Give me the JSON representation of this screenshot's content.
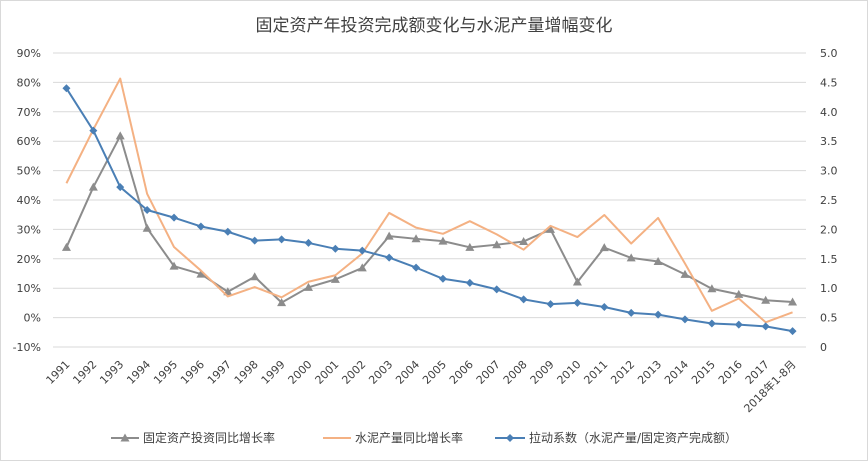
{
  "chart_data": {
    "type": "line",
    "title": "固定资产年投资完成额变化与水泥产量增幅变化",
    "categories": [
      "1991",
      "1992",
      "1993",
      "1994",
      "1995",
      "1996",
      "1997",
      "1998",
      "1999",
      "2000",
      "2001",
      "2002",
      "2003",
      "2004",
      "2005",
      "2006",
      "2007",
      "2008",
      "2009",
      "2010",
      "2011",
      "2012",
      "2013",
      "2014",
      "2015",
      "2016",
      "2017",
      "2018年1-8月"
    ],
    "y_left": {
      "ticks": [
        "-10%",
        "0%",
        "10%",
        "20%",
        "30%",
        "40%",
        "50%",
        "60%",
        "70%",
        "80%",
        "90%"
      ],
      "ylim": [
        -10,
        90
      ]
    },
    "y_right": {
      "ticks": [
        "0",
        "0.5",
        "1.0",
        "1.5",
        "2.0",
        "2.5",
        "3.0",
        "3.5",
        "4.0",
        "4.5",
        "5.0"
      ],
      "ylim": [
        0,
        5
      ]
    },
    "grid": true,
    "legend_position": "bottom",
    "series": [
      {
        "name": "固定资产投资同比增长率",
        "axis": "left",
        "color": "#8c8c8c",
        "marker": "triangle",
        "values": [
          23.9,
          44.4,
          61.8,
          30.4,
          17.5,
          14.8,
          8.8,
          13.9,
          5.1,
          10.3,
          13.0,
          16.9,
          27.7,
          26.8,
          26.0,
          23.9,
          24.8,
          25.9,
          30.0,
          12.1,
          23.8,
          20.3,
          19.1,
          14.7,
          9.8,
          7.9,
          5.9,
          5.3
        ]
      },
      {
        "name": "水泥产量同比增长率",
        "axis": "left",
        "color": "#f4b183",
        "marker": "none",
        "values": [
          45.7,
          64.0,
          81.3,
          42.1,
          24.0,
          16.0,
          7.2,
          10.4,
          6.9,
          12.2,
          14.4,
          21.8,
          35.6,
          30.6,
          28.5,
          32.8,
          28.3,
          23.1,
          31.2,
          27.4,
          34.9,
          25.2,
          33.9,
          18.4,
          2.3,
          6.5,
          -1.6,
          1.8
        ]
      },
      {
        "name": "拉动系数（水泥产量/固定资产完成额）",
        "axis": "right",
        "color": "#4a7fb5",
        "marker": "diamond",
        "values": [
          4.4,
          3.68,
          2.72,
          2.33,
          2.2,
          2.05,
          1.96,
          1.81,
          1.83,
          1.77,
          1.67,
          1.64,
          1.52,
          1.35,
          1.16,
          1.09,
          0.98,
          0.81,
          0.73,
          0.75,
          0.68,
          0.58,
          0.55,
          0.47,
          0.4,
          0.38,
          0.35,
          0.27
        ]
      }
    ]
  }
}
